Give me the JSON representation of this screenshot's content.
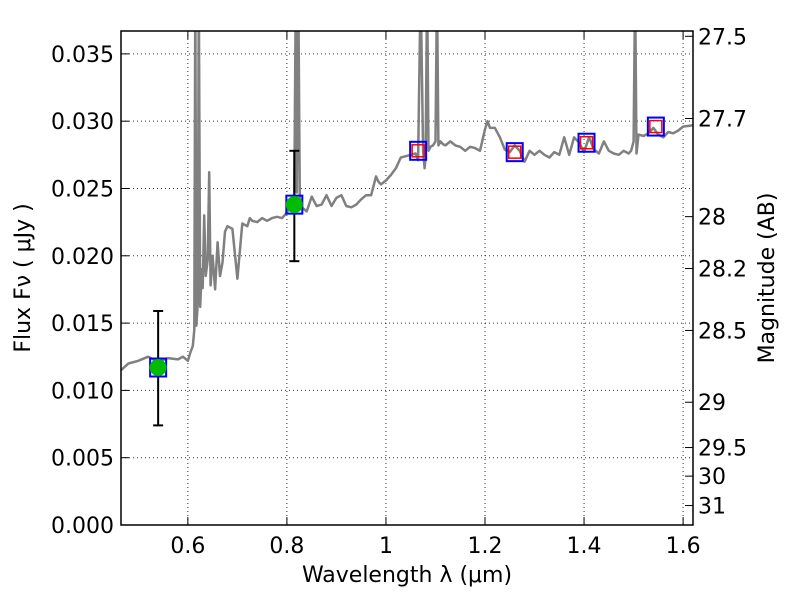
{
  "chart_data": {
    "type": "line",
    "xlabel": "Wavelength  λ (μm)",
    "ylabel": "Flux  Fν  ( μJy )",
    "y2label": "Magnitude (AB)",
    "xlim": [
      0.465,
      1.62
    ],
    "ylim": [
      0.0,
      0.0367
    ],
    "xticks": [
      0.6,
      0.8,
      1.0,
      1.2,
      1.4,
      1.6
    ],
    "xtick_labels": [
      "0.6",
      "0.8",
      "1",
      "1.2",
      "1.4",
      "1.6"
    ],
    "yticks": [
      0.0,
      0.005,
      0.01,
      0.015,
      0.02,
      0.025,
      0.03,
      0.035
    ],
    "ytick_labels": [
      "0.000",
      "0.005",
      "0.010",
      "0.015",
      "0.020",
      "0.025",
      "0.030",
      "0.035"
    ],
    "y2_ticks": [
      {
        "label": "27.5",
        "mag": 27.5
      },
      {
        "label": "27.7",
        "mag": 27.7
      },
      {
        "label": "28",
        "mag": 28.0
      },
      {
        "label": "28.2",
        "mag": 28.2
      },
      {
        "label": "28.5",
        "mag": 28.5
      },
      {
        "label": "29",
        "mag": 29.0
      },
      {
        "label": "29.5",
        "mag": 29.5
      },
      {
        "label": "30",
        "mag": 30.0
      },
      {
        "label": "31",
        "mag": 31.0
      }
    ],
    "grid": true,
    "grid_style": "dotted",
    "series": [
      {
        "role": "model-spectrum",
        "color": "#808080",
        "x": [
          0.465,
          0.48,
          0.5,
          0.52,
          0.54,
          0.56,
          0.58,
          0.59,
          0.6,
          0.605,
          0.61,
          0.613,
          0.615,
          0.617,
          0.62,
          0.622,
          0.625,
          0.628,
          0.63,
          0.633,
          0.636,
          0.64,
          0.643,
          0.646,
          0.65,
          0.655,
          0.66,
          0.665,
          0.67,
          0.675,
          0.68,
          0.69,
          0.7,
          0.71,
          0.72,
          0.725,
          0.73,
          0.74,
          0.75,
          0.76,
          0.77,
          0.78,
          0.79,
          0.8,
          0.805,
          0.81,
          0.815,
          0.818,
          0.82,
          0.823,
          0.826,
          0.83,
          0.84,
          0.85,
          0.86,
          0.87,
          0.88,
          0.89,
          0.9,
          0.91,
          0.92,
          0.93,
          0.94,
          0.95,
          0.96,
          0.97,
          0.975,
          0.98,
          0.985,
          0.99,
          1.0,
          1.01,
          1.02,
          1.03,
          1.04,
          1.05,
          1.06,
          1.065,
          1.07,
          1.075,
          1.078,
          1.08,
          1.083,
          1.086,
          1.09,
          1.095,
          1.1,
          1.103,
          1.106,
          1.11,
          1.115,
          1.12,
          1.13,
          1.14,
          1.15,
          1.16,
          1.17,
          1.18,
          1.19,
          1.2,
          1.205,
          1.21,
          1.22,
          1.23,
          1.24,
          1.25,
          1.26,
          1.27,
          1.28,
          1.29,
          1.3,
          1.31,
          1.32,
          1.33,
          1.34,
          1.35,
          1.36,
          1.37,
          1.38,
          1.39,
          1.4,
          1.41,
          1.42,
          1.43,
          1.44,
          1.45,
          1.46,
          1.47,
          1.48,
          1.49,
          1.495,
          1.5,
          1.503,
          1.506,
          1.51,
          1.52,
          1.53,
          1.54,
          1.55,
          1.56,
          1.57,
          1.58,
          1.59,
          1.6,
          1.62
        ],
        "y": [
          0.0115,
          0.012,
          0.0122,
          0.0125,
          0.0121,
          0.0124,
          0.0123,
          0.0125,
          0.0122,
          0.0128,
          0.0133,
          0.0145,
          0.04,
          0.0148,
          0.0165,
          0.04,
          0.0162,
          0.019,
          0.0176,
          0.023,
          0.0185,
          0.0197,
          0.0262,
          0.0178,
          0.02,
          0.0175,
          0.021,
          0.0185,
          0.0195,
          0.0218,
          0.0222,
          0.022,
          0.0183,
          0.0224,
          0.0222,
          0.0228,
          0.0226,
          0.0225,
          0.0228,
          0.0226,
          0.0228,
          0.0229,
          0.0228,
          0.0232,
          0.0236,
          0.0238,
          0.0245,
          0.04,
          0.0247,
          0.04,
          0.0242,
          0.0236,
          0.0233,
          0.0244,
          0.0237,
          0.0238,
          0.0245,
          0.0237,
          0.0243,
          0.0245,
          0.0237,
          0.0236,
          0.0238,
          0.0242,
          0.0245,
          0.0245,
          0.0252,
          0.0259,
          0.0255,
          0.0253,
          0.0256,
          0.026,
          0.0265,
          0.0273,
          0.0274,
          0.0275,
          0.0276,
          0.0271,
          0.04,
          0.0278,
          0.0265,
          0.0273,
          0.04,
          0.0278,
          0.0281,
          0.0282,
          0.0285,
          0.04,
          0.0282,
          0.0285,
          0.0283,
          0.0282,
          0.0285,
          0.0282,
          0.0281,
          0.0278,
          0.0281,
          0.028,
          0.0278,
          0.0294,
          0.03,
          0.0295,
          0.0295,
          0.0288,
          0.0279,
          0.0277,
          0.0282,
          0.0278,
          0.027,
          0.0278,
          0.0275,
          0.0278,
          0.0275,
          0.0273,
          0.0277,
          0.0275,
          0.0288,
          0.0275,
          0.0288,
          0.0284,
          0.0277,
          0.0288,
          0.0279,
          0.0276,
          0.0285,
          0.0278,
          0.0276,
          0.0275,
          0.0278,
          0.0276,
          0.0278,
          0.0285,
          0.04,
          0.0276,
          0.029,
          0.0289,
          0.0291,
          0.0295,
          0.029,
          0.0288,
          0.0292,
          0.0291,
          0.0293,
          0.0296,
          0.0297
        ]
      }
    ],
    "photometry": [
      {
        "x": 0.54,
        "y": 0.0117,
        "yerr_low": 0.0074,
        "yerr_high": 0.0159,
        "marker": "green-circle",
        "box_color": "#0000ff"
      },
      {
        "x": 0.815,
        "y": 0.0238,
        "yerr_low": 0.0196,
        "yerr_high": 0.0278,
        "marker": "green-circle",
        "box_color": "#0000ff"
      },
      {
        "x": 1.065,
        "y": 0.0278,
        "marker": "red-square",
        "box_color": "#0000ff"
      },
      {
        "x": 1.26,
        "y": 0.0277,
        "marker": "red-square",
        "box_color": "#0000ff"
      },
      {
        "x": 1.405,
        "y": 0.0284,
        "marker": "red-square",
        "box_color": "#0000ff"
      },
      {
        "x": 1.545,
        "y": 0.0296,
        "marker": "red-square",
        "box_color": "#0000ff"
      }
    ],
    "colors": {
      "model": "#808080",
      "detection": "#00bb00",
      "model_band": "#ff0000",
      "observed_box": "#0000ff",
      "errorbar": "#000000"
    }
  }
}
